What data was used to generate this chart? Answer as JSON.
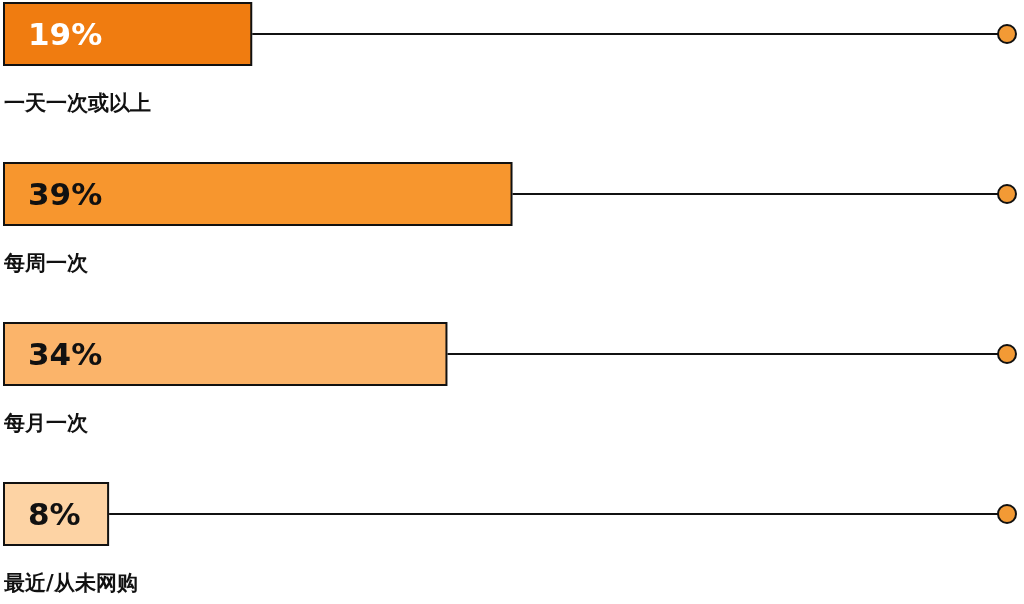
{
  "chart_data": {
    "type": "bar",
    "orientation": "horizontal",
    "categories": [
      "一天一次或以上",
      "每周一次",
      "每月一次",
      "最近/从未网购"
    ],
    "values": [
      19,
      39,
      34,
      8
    ],
    "colors": [
      "#f07c10",
      "#f7962e",
      "#fbb46a",
      "#fdd3a4"
    ],
    "value_labels": [
      "19%",
      "39%",
      "34%",
      "8%"
    ]
  }
}
